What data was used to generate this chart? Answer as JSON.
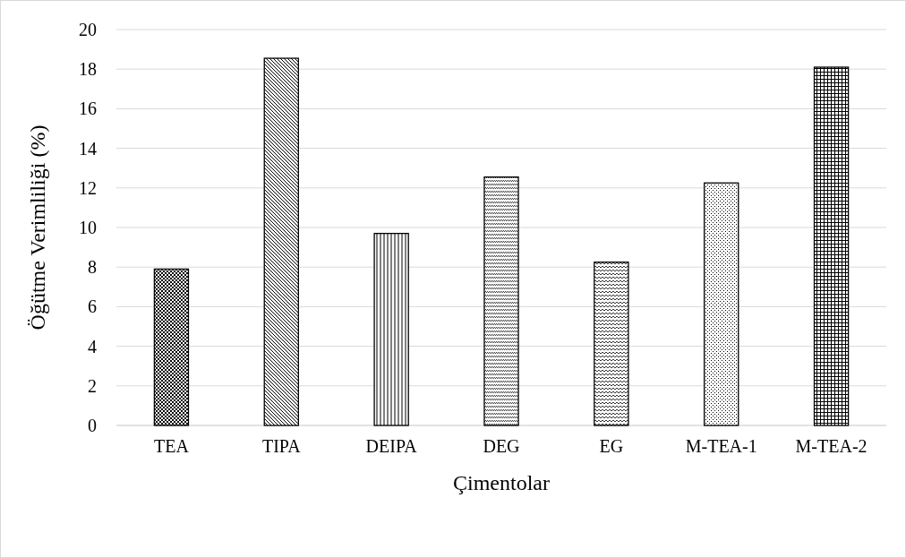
{
  "chart_data": {
    "type": "bar",
    "xlabel": "Çimentolar",
    "ylabel": "Öğütme Verimliliği (%)",
    "categories": [
      "TEA",
      "TIPA",
      "DEIPA",
      "DEG",
      "EG",
      "M-TEA-1",
      "M-TEA-2"
    ],
    "values": [
      7.9,
      18.55,
      9.7,
      12.55,
      8.25,
      12.25,
      18.1
    ],
    "color": "#000000",
    "ylim": [
      0,
      20
    ],
    "yticks": [
      0,
      2,
      4,
      6,
      8,
      10,
      12,
      14,
      16,
      18,
      20
    ],
    "grid": "y"
  }
}
